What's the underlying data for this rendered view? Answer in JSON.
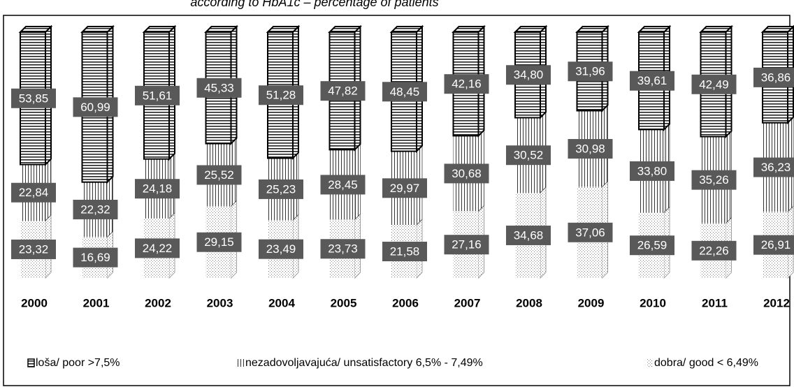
{
  "chart_data": {
    "type": "stacked_bar",
    "title": "according to HbA1c – percentage of patients",
    "categories": [
      "2000",
      "2001",
      "2002",
      "2003",
      "2004",
      "2005",
      "2006",
      "2007",
      "2008",
      "2009",
      "2010",
      "2011",
      "2012"
    ],
    "series": [
      {
        "name": "dobra/ good < 6,49%",
        "color": "#888888",
        "values": [
          23.32,
          16.69,
          24.22,
          29.15,
          23.49,
          23.73,
          21.58,
          27.16,
          34.68,
          37.06,
          26.59,
          22.26,
          26.91
        ],
        "value_labels": [
          "23,32",
          "16,69",
          "24,22",
          "29,15",
          "23,49",
          "23,73",
          "21,58",
          "27,16",
          "34,68",
          "37,06",
          "26,59",
          "22,26",
          "26,91"
        ]
      },
      {
        "name": "nezadovoljavajuća/ unsatisfactory 6,5% - 7,49%",
        "color": "#444444",
        "values": [
          22.84,
          22.32,
          24.18,
          25.52,
          25.23,
          28.45,
          29.97,
          30.68,
          30.52,
          30.98,
          33.8,
          35.26,
          36.23
        ],
        "value_labels": [
          "22,84",
          "22,32",
          "24,18",
          "25,52",
          "25,23",
          "28,45",
          "29,97",
          "30,68",
          "30,52",
          "30,98",
          "33,80",
          "35,26",
          "36,23"
        ]
      },
      {
        "name": "loša/ poor >7,5%",
        "color": "#000000",
        "values": [
          53.85,
          60.99,
          51.61,
          45.33,
          51.28,
          47.82,
          48.45,
          42.16,
          34.8,
          31.96,
          39.61,
          42.49,
          36.86
        ],
        "value_labels": [
          "53,85",
          "60,99",
          "51,61",
          "45,33",
          "51,28",
          "47,82",
          "48,45",
          "42,16",
          "34,80",
          "31,96",
          "39,61",
          "42,49",
          "36,86"
        ]
      }
    ]
  }
}
